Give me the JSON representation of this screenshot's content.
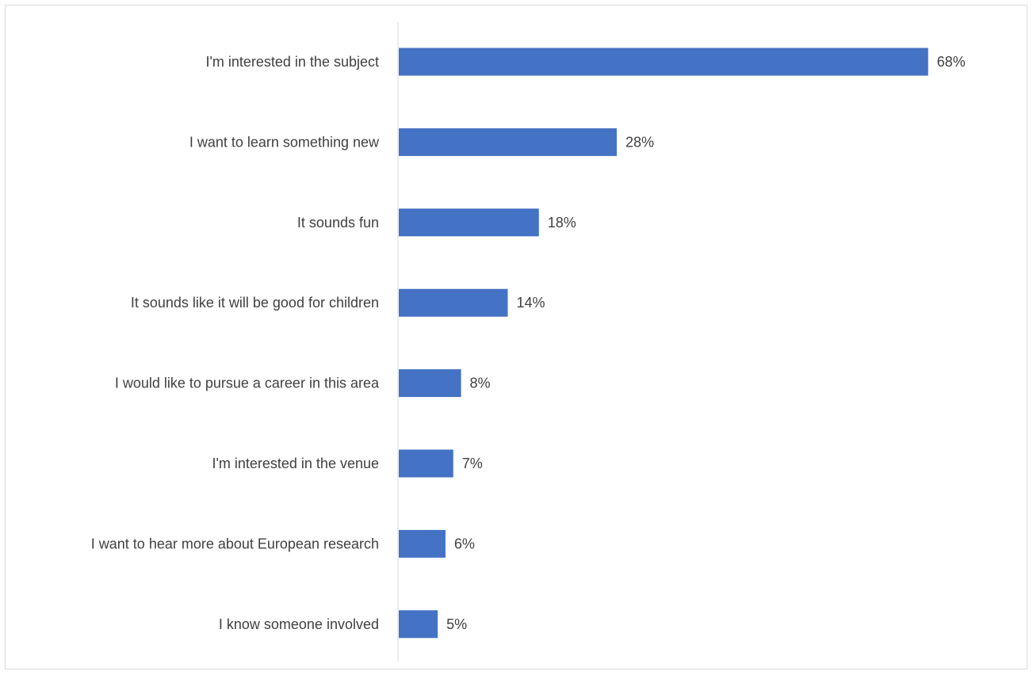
{
  "chart_data": {
    "type": "bar",
    "orientation": "horizontal",
    "categories": [
      "I'm interested in the subject",
      "I want to learn something new",
      "It sounds fun",
      "It sounds like it will be good for children",
      "I would like to pursue a career in this area",
      "I'm interested in the venue",
      "I want to hear more about European research",
      "I know someone involved"
    ],
    "values": [
      68,
      28,
      18,
      14,
      8,
      7,
      6,
      5
    ],
    "value_labels": [
      "68%",
      "28%",
      "18%",
      "14%",
      "8%",
      "7%",
      "6%",
      "5%"
    ],
    "unit": "%",
    "xlim": [
      0,
      80
    ],
    "grid": false,
    "legend": "none",
    "bar_color": "#4472C4",
    "axis_color": "#d9d9d9",
    "text_color": "#404040"
  }
}
